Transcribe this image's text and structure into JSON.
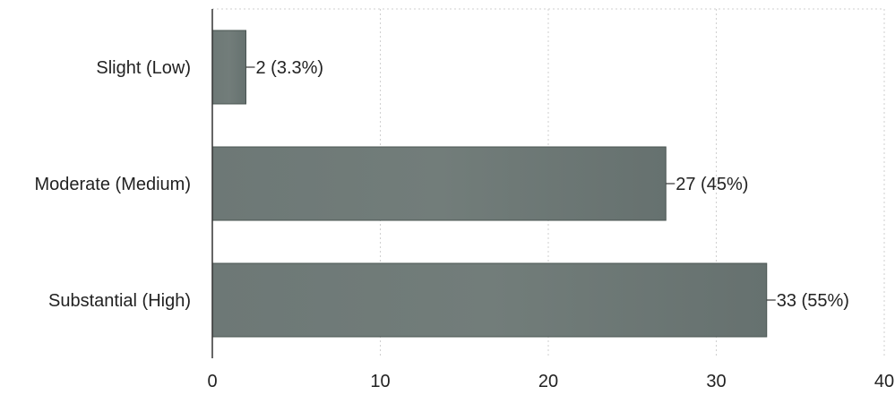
{
  "chart_data": {
    "type": "bar",
    "orientation": "horizontal",
    "categories": [
      "Slight (Low)",
      "Moderate (Medium)",
      "Substantial (High)"
    ],
    "values": [
      2,
      27,
      33
    ],
    "data_labels": [
      "2 (3.3%)",
      "27 (45%)",
      "33 (55%)"
    ],
    "title": "",
    "xlabel": "",
    "ylabel": "",
    "xlim": [
      0,
      40
    ],
    "x_ticks": [
      0,
      10,
      20,
      30,
      40
    ],
    "x_tick_labels": [
      "0",
      "10",
      "20",
      "30",
      "40"
    ],
    "grid": true,
    "legend": "none",
    "bar_color": "#6f7a78"
  }
}
